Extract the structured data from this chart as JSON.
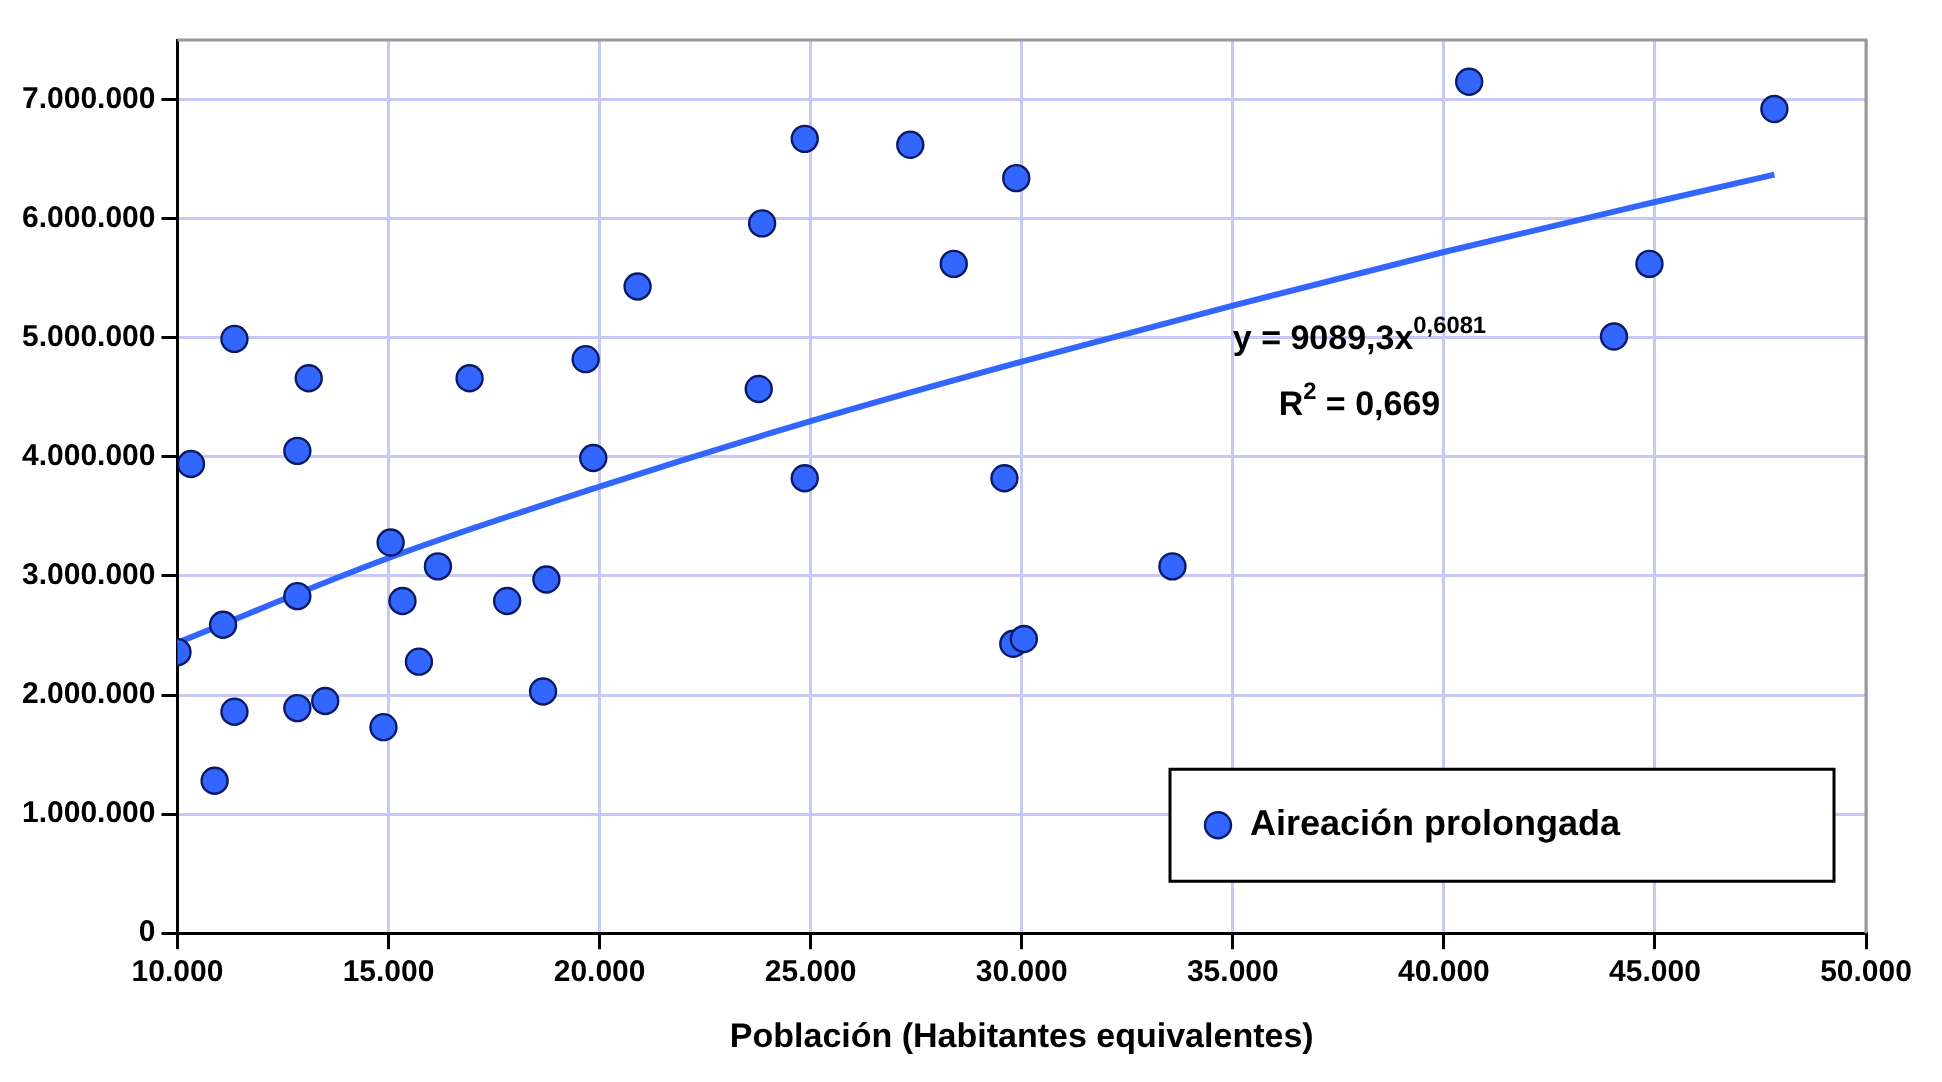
{
  "chart_data": {
    "type": "scatter",
    "xlabel": "Población (Habitantes equivalentes)",
    "annotations": [
      "y = 9089,3x$^{0,6081}$",
      "R$^{2}$ = 0,669"
    ],
    "series": [
      {
        "name": "Aireación prolongada",
        "type": "scatter",
        "color": "#3366ff",
        "marker": "circle",
        "x": [
          10000,
          10320,
          11350,
          11080,
          11350,
          10880,
          12840,
          13110,
          12840,
          12840,
          13500,
          14880,
          15050,
          15330,
          15720,
          16170,
          16920,
          17810,
          18740,
          18660,
          19670,
          19850,
          20900,
          23850,
          23770,
          24860,
          24860,
          27360,
          28390,
          29870,
          29590,
          29800,
          30050,
          33570,
          40600,
          47830,
          44870,
          44030
        ],
        "values": [
          2360000,
          3940000,
          4990000,
          2590000,
          1860000,
          1280000,
          4050000,
          4660000,
          2830000,
          1890000,
          1950000,
          1730000,
          3280000,
          2790000,
          2280000,
          3080000,
          4660000,
          2790000,
          2970000,
          2030000,
          4820000,
          3990000,
          5430000,
          5960000,
          4570000,
          6670000,
          3820000,
          6620000,
          5620000,
          6340000,
          3820000,
          2430000,
          2470000,
          3080000,
          7150000,
          6920000,
          5620000,
          5010000
        ]
      },
      {
        "type": "line",
        "color": "#3366ff",
        "marker": "none",
        "line_style": "solid",
        "x": [
          10000,
          15000,
          20000,
          25000,
          30000,
          35000,
          40000,
          45000,
          47830
        ],
        "values": [
          2440000,
          3150000,
          3750000,
          4300000,
          4800000,
          5270000,
          5720000,
          6140000,
          6370000
        ]
      }
    ],
    "xlim": [
      10000,
      50000
    ],
    "xticks": [
      {
        "value": 10000,
        "label": "10.000"
      },
      {
        "value": 15000,
        "label": "15.000"
      },
      {
        "value": 20000,
        "label": "20.000"
      },
      {
        "value": 25000,
        "label": "25.000"
      },
      {
        "value": 30000,
        "label": "30.000"
      },
      {
        "value": 35000,
        "label": "35.000"
      },
      {
        "value": 40000,
        "label": "40.000"
      },
      {
        "value": 45000,
        "label": "45.000"
      },
      {
        "value": 50000,
        "label": "50.000"
      }
    ],
    "ylim": [
      0,
      7500000
    ],
    "yticks": [
      0,
      {
        "value": 1000000,
        "label": "1.000.000"
      },
      {
        "value": 2000000,
        "label": "2.000.000"
      },
      {
        "value": 3000000,
        "label": "3.000.000"
      },
      {
        "value": 4000000,
        "label": "4.000.000"
      },
      {
        "value": 5000000,
        "label": "5.000.000"
      },
      {
        "value": 6000000,
        "label": "6.000.000"
      },
      {
        "value": 7000000,
        "label": "7.000.000"
      }
    ],
    "grid": true,
    "legend": "bottom right"
  }
}
